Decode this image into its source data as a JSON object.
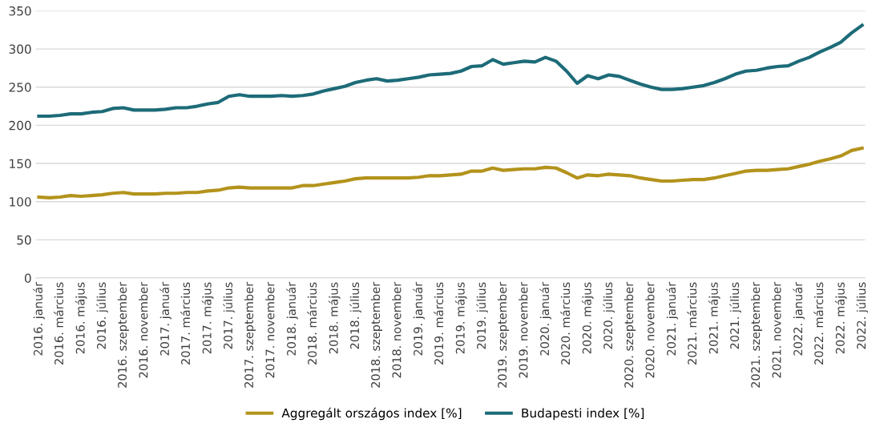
{
  "chart_data": {
    "type": "line",
    "categories": [
      "2016. január",
      null,
      "2016. március",
      null,
      "2016. május",
      null,
      "2016. július",
      null,
      "2016. szeptember",
      null,
      "2016. november",
      null,
      "2017. január",
      null,
      "2017. március",
      null,
      "2017. május",
      null,
      "2017. július",
      null,
      "2017. szeptember",
      null,
      "2017. november",
      null,
      "2018. január",
      null,
      "2018. március",
      null,
      "2018. május",
      null,
      "2018. július",
      null,
      "2018. szeptember",
      null,
      "2018. november",
      null,
      "2019. január",
      null,
      "2019. március",
      null,
      "2019. május",
      null,
      "2019. július",
      null,
      "2019. szeptember",
      null,
      "2019. november",
      null,
      "2020. január",
      null,
      "2020. március",
      null,
      "2020. május",
      null,
      "2020. július",
      null,
      "2020. szeptember",
      null,
      "2020. november",
      null,
      "2021. január",
      null,
      "2021. március",
      null,
      "2021. május",
      null,
      "2021. július",
      null,
      "2021. szeptember",
      null,
      "2021. november",
      null,
      "2022. január",
      null,
      "2022. március",
      null,
      "2022. május",
      null,
      "2022. július"
    ],
    "series": [
      {
        "name": "Aggregált országos index [%]",
        "color": "#b3931c",
        "values": [
          106,
          105,
          106,
          108,
          107,
          108,
          109,
          111,
          112,
          110,
          110,
          110,
          111,
          111,
          112,
          112,
          114,
          115,
          118,
          119,
          118,
          118,
          118,
          118,
          118,
          121,
          121,
          123,
          125,
          127,
          130,
          131,
          131,
          131,
          131,
          131,
          132,
          134,
          134,
          135,
          136,
          140,
          140,
          144,
          141,
          142,
          143,
          143,
          145,
          144,
          138,
          131,
          135,
          134,
          136,
          135,
          134,
          131,
          129,
          127,
          127,
          128,
          129,
          129,
          131,
          134,
          137,
          140,
          141,
          141,
          142,
          143,
          146,
          149,
          153,
          156,
          160,
          167,
          170
        ]
      },
      {
        "name": "Budapesti index [%]",
        "color": "#1d6b78",
        "values": [
          212,
          212,
          213,
          215,
          215,
          217,
          218,
          222,
          223,
          220,
          220,
          220,
          221,
          223,
          223,
          225,
          228,
          230,
          238,
          240,
          238,
          238,
          238,
          239,
          238,
          239,
          241,
          245,
          248,
          251,
          256,
          259,
          261,
          258,
          259,
          261,
          263,
          266,
          267,
          268,
          271,
          277,
          278,
          286,
          280,
          282,
          284,
          283,
          289,
          284,
          271,
          255,
          265,
          261,
          266,
          264,
          259,
          254,
          250,
          247,
          247,
          248,
          250,
          252,
          256,
          261,
          267,
          271,
          272,
          275,
          277,
          278,
          284,
          289,
          296,
          302,
          309,
          321,
          331
        ]
      }
    ],
    "ylim": [
      0,
      350
    ],
    "yticks": [
      0,
      50,
      100,
      150,
      200,
      250,
      300,
      350
    ],
    "grid": "y",
    "legend": "bottom",
    "line_style": "solid",
    "marker": "none"
  }
}
